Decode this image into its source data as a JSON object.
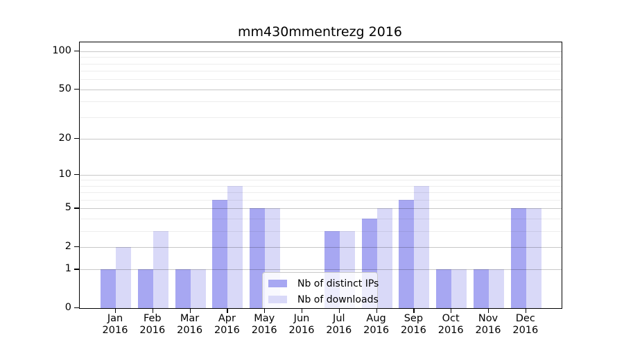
{
  "title": "mm430mmentrezg 2016",
  "colors": {
    "distinct_ips": "#a7a7f2",
    "downloads": "#d9d9f8",
    "axis": "#000000",
    "legend_border": "#c8c8c8"
  },
  "legend": {
    "items": [
      {
        "label": "Nb of distinct IPs",
        "color_key": "distinct_ips"
      },
      {
        "label": "Nb of downloads",
        "color_key": "downloads"
      }
    ]
  },
  "chart_data": {
    "type": "bar",
    "title": "mm430mmentrezg 2016",
    "months": [
      "Jan",
      "Feb",
      "Mar",
      "Apr",
      "May",
      "Jun",
      "Jul",
      "Aug",
      "Sep",
      "Oct",
      "Nov",
      "Dec"
    ],
    "year_label": "2016",
    "series": [
      {
        "name": "Nb of distinct IPs",
        "color_key": "distinct_ips",
        "values": [
          1,
          1,
          1,
          6,
          5,
          0,
          3,
          4,
          6,
          1,
          1,
          5
        ]
      },
      {
        "name": "Nb of downloads",
        "color_key": "downloads",
        "values": [
          2,
          3,
          1,
          8,
          5,
          0,
          3,
          5,
          8,
          1,
          1,
          5
        ]
      }
    ],
    "yscale": "log10(1+v)",
    "y_ticks": [
      0,
      1,
      2,
      5,
      10,
      20,
      50,
      100
    ],
    "y_minor_gridlines": [
      3,
      4,
      6,
      7,
      8,
      9,
      30,
      40,
      60,
      70,
      80,
      90
    ],
    "ylim": [
      0,
      100
    ],
    "grid": true,
    "legend_position": "lower-center"
  }
}
